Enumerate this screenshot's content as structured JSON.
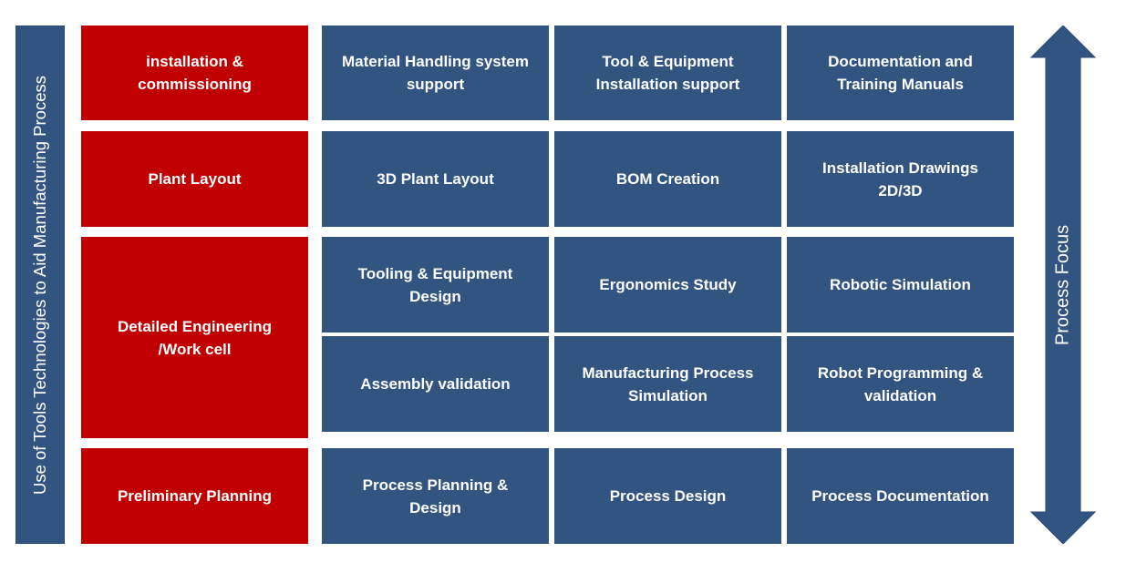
{
  "side_label": "Use of Tools Technologies to Aid Manufacturing Process",
  "arrow_label": "Process Focus",
  "colors": {
    "stage_fill": "#c00000",
    "task_fill": "#325481",
    "text": "#ffffff"
  },
  "stages": [
    {
      "label": "installation &\ncommissioning",
      "tasks": [
        "Material Handling system\nsupport",
        "Tool & Equipment\nInstallation support",
        "Documentation and\nTraining Manuals"
      ]
    },
    {
      "label": "Plant Layout",
      "tasks": [
        "3D Plant Layout",
        "BOM Creation",
        "Installation Drawings\n2D/3D"
      ]
    },
    {
      "label": "Detailed Engineering\n/Work cell",
      "tasks": [
        "Tooling & Equipment\nDesign",
        "Ergonomics Study",
        "Robotic Simulation",
        "Assembly validation",
        "Manufacturing Process\nSimulation",
        "Robot Programming &\nvalidation"
      ]
    },
    {
      "label": "Preliminary Planning",
      "tasks": [
        "Process Planning &\nDesign",
        "Process Design",
        "Process Documentation"
      ]
    }
  ]
}
